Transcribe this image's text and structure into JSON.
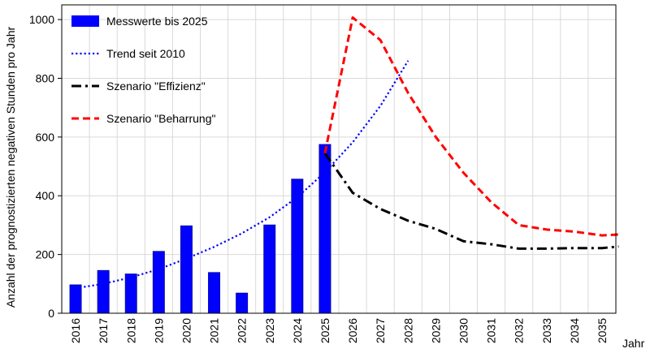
{
  "chart_data": {
    "type": "bar",
    "xlabel": "Jahr",
    "ylabel": "Anzahl der prognostizierten negativen Stunden pro Jahr",
    "ylim": [
      0,
      1050
    ],
    "yticks": [
      0,
      200,
      400,
      600,
      800,
      1000
    ],
    "categories": [
      "2016",
      "2017",
      "2018",
      "2019",
      "2020",
      "2021",
      "2022",
      "2023",
      "2024",
      "2025",
      "2026",
      "2027",
      "2028",
      "2029",
      "2030",
      "2031",
      "2032",
      "2033",
      "2034",
      "2035"
    ],
    "grid": true,
    "legend_position": "top-left",
    "series": [
      {
        "name": "Messwerte bis 2025",
        "type": "bar",
        "color": "#0000ff",
        "x": [
          "2016",
          "2017",
          "2018",
          "2019",
          "2020",
          "2021",
          "2022",
          "2023",
          "2024",
          "2025"
        ],
        "values": [
          97,
          146,
          134,
          211,
          298,
          139,
          69,
          301,
          457,
          575
        ]
      },
      {
        "name": "Trend seit 2010",
        "type": "line",
        "style": "dotted",
        "color": "#0000ff",
        "x": [
          2016,
          2017,
          2018,
          2019,
          2020,
          2021,
          2022,
          2023,
          2024,
          2025,
          2026,
          2027,
          2028
        ],
        "values": [
          85,
          100,
          122,
          150,
          186,
          226,
          272,
          327,
          395,
          480,
          582,
          706,
          860
        ]
      },
      {
        "name": "Szenario \"Effizienz\"",
        "type": "line",
        "style": "dashdot",
        "color": "#000000",
        "x": [
          2025,
          2026,
          2027,
          2028,
          2029,
          2030,
          2031,
          2032,
          2033,
          2034,
          2035,
          2035.6
        ],
        "values": [
          545,
          410,
          355,
          315,
          287,
          245,
          235,
          220,
          220,
          222,
          222,
          227
        ]
      },
      {
        "name": "Szenario \"Beharrung\"",
        "type": "line",
        "style": "dashed",
        "color": "#ff0000",
        "x": [
          2025,
          2026,
          2027,
          2028,
          2029,
          2030,
          2031,
          2032,
          2033,
          2034,
          2035,
          2035.6
        ],
        "values": [
          545,
          1007,
          930,
          750,
          600,
          478,
          378,
          300,
          285,
          278,
          265,
          268
        ]
      }
    ]
  }
}
